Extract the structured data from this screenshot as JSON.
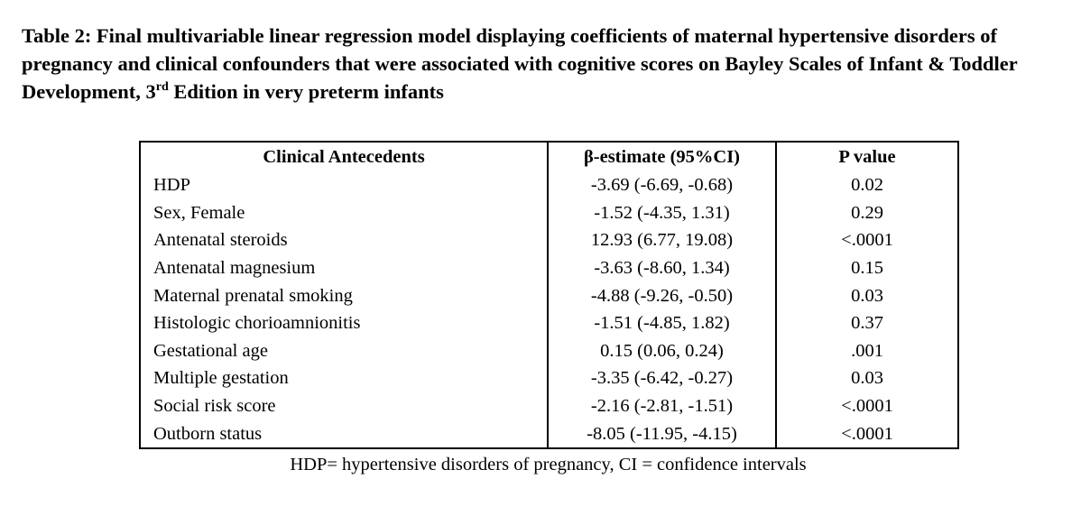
{
  "caption": {
    "text_before_sup": "Table 2: Final multivariable linear regression model displaying coefficients of maternal hypertensive disorders of pregnancy and clinical confounders that were associated with cognitive scores on Bayley Scales of Infant & Toddler Development, 3",
    "sup": "rd",
    "text_after_sup": " Edition in very preterm infants"
  },
  "table": {
    "headers": [
      "Clinical Antecedents",
      "β-estimate (95%CI)",
      "P value"
    ],
    "rows": [
      {
        "antecedent": "HDP",
        "estimate": "-3.69 (-6.69, -0.68)",
        "p": "0.02"
      },
      {
        "antecedent": "Sex, Female",
        "estimate": "-1.52 (-4.35, 1.31)",
        "p": "0.29"
      },
      {
        "antecedent": "Antenatal steroids",
        "estimate": "12.93 (6.77, 19.08)",
        "p": "<.0001"
      },
      {
        "antecedent": "Antenatal magnesium",
        "estimate": "-3.63 (-8.60, 1.34)",
        "p": "0.15"
      },
      {
        "antecedent": "Maternal prenatal smoking",
        "estimate": "-4.88 (-9.26, -0.50)",
        "p": "0.03"
      },
      {
        "antecedent": "Histologic chorioamnionitis",
        "estimate": "-1.51 (-4.85, 1.82)",
        "p": "0.37"
      },
      {
        "antecedent": "Gestational age",
        "estimate": "0.15 (0.06, 0.24)",
        "p": ".001"
      },
      {
        "antecedent": "Multiple gestation",
        "estimate": "-3.35 (-6.42, -0.27)",
        "p": "0.03"
      },
      {
        "antecedent": "Social risk score",
        "estimate": "-2.16 (-2.81, -1.51)",
        "p": "<.0001"
      },
      {
        "antecedent": "Outborn status",
        "estimate": "-8.05 (-11.95, -4.15)",
        "p": "<.0001"
      }
    ]
  },
  "footnote": "HDP= hypertensive disorders of pregnancy, CI = confidence intervals"
}
